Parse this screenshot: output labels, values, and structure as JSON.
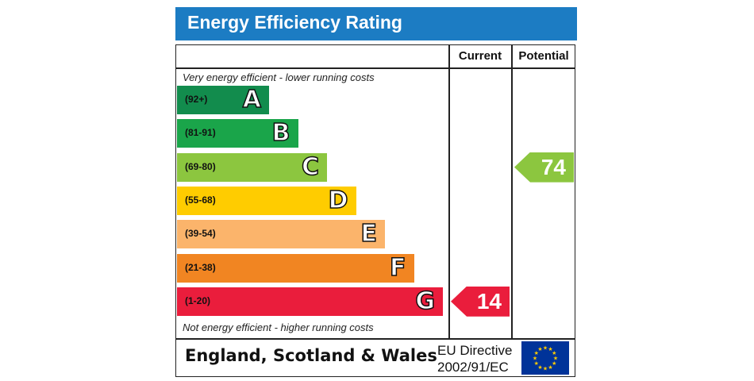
{
  "title": "Energy Efficiency Rating",
  "headers": {
    "current": "Current",
    "potential": "Potential"
  },
  "notes": {
    "top": "Very energy efficient - lower running costs",
    "bottom": "Not energy efficient - higher running costs"
  },
  "chart_data": {
    "type": "bar",
    "title": "Energy Efficiency Rating",
    "categories": [
      "A",
      "B",
      "C",
      "D",
      "E",
      "F",
      "G"
    ],
    "ranges": [
      "(92+)",
      "(81-91)",
      "(69-80)",
      "(55-68)",
      "(39-54)",
      "(21-38)",
      "(1-20)"
    ],
    "colors": [
      "#128c4d",
      "#1aa54a",
      "#8cc63f",
      "#ffcc00",
      "#fbb46b",
      "#f18522",
      "#ea1d3c"
    ],
    "current": {
      "value": 14,
      "band": "G",
      "color": "#ea1d3c"
    },
    "potential": {
      "value": 74,
      "band": "C",
      "color": "#8cc63f"
    }
  },
  "footer": {
    "country": "England, Scotland & Wales",
    "directive_line1": "EU Directive",
    "directive_line2": "2002/91/EC",
    "flag_icon": "eu-flag-icon",
    "flag_color": "#003399",
    "star_color": "#ffcc00"
  }
}
